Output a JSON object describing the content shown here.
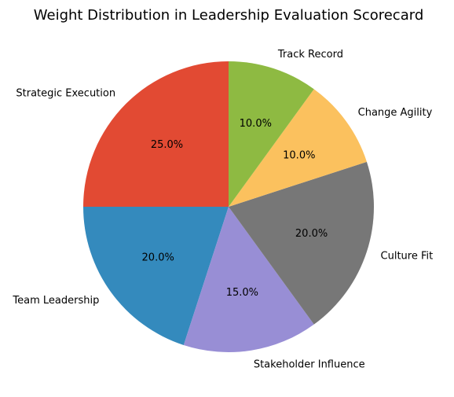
{
  "chart_data": {
    "type": "pie",
    "title": "Weight Distribution in Leadership Evaluation Scorecard",
    "start_angle_deg": 90,
    "direction": "counterclockwise",
    "slices": [
      {
        "label": "Strategic Execution",
        "value": 25,
        "pct_label": "25.0%",
        "color": "#E24A33"
      },
      {
        "label": "Team Leadership",
        "value": 20,
        "pct_label": "20.0%",
        "color": "#348ABD"
      },
      {
        "label": "Stakeholder Influence",
        "value": 15,
        "pct_label": "15.0%",
        "color": "#988ED5"
      },
      {
        "label": "Culture Fit",
        "value": 20,
        "pct_label": "20.0%",
        "color": "#777777"
      },
      {
        "label": "Change Agility",
        "value": 10,
        "pct_label": "10.0%",
        "color": "#FBC15E"
      },
      {
        "label": "Track Record",
        "value": 10,
        "pct_label": "10.0%",
        "color": "#8EBA42"
      }
    ]
  }
}
